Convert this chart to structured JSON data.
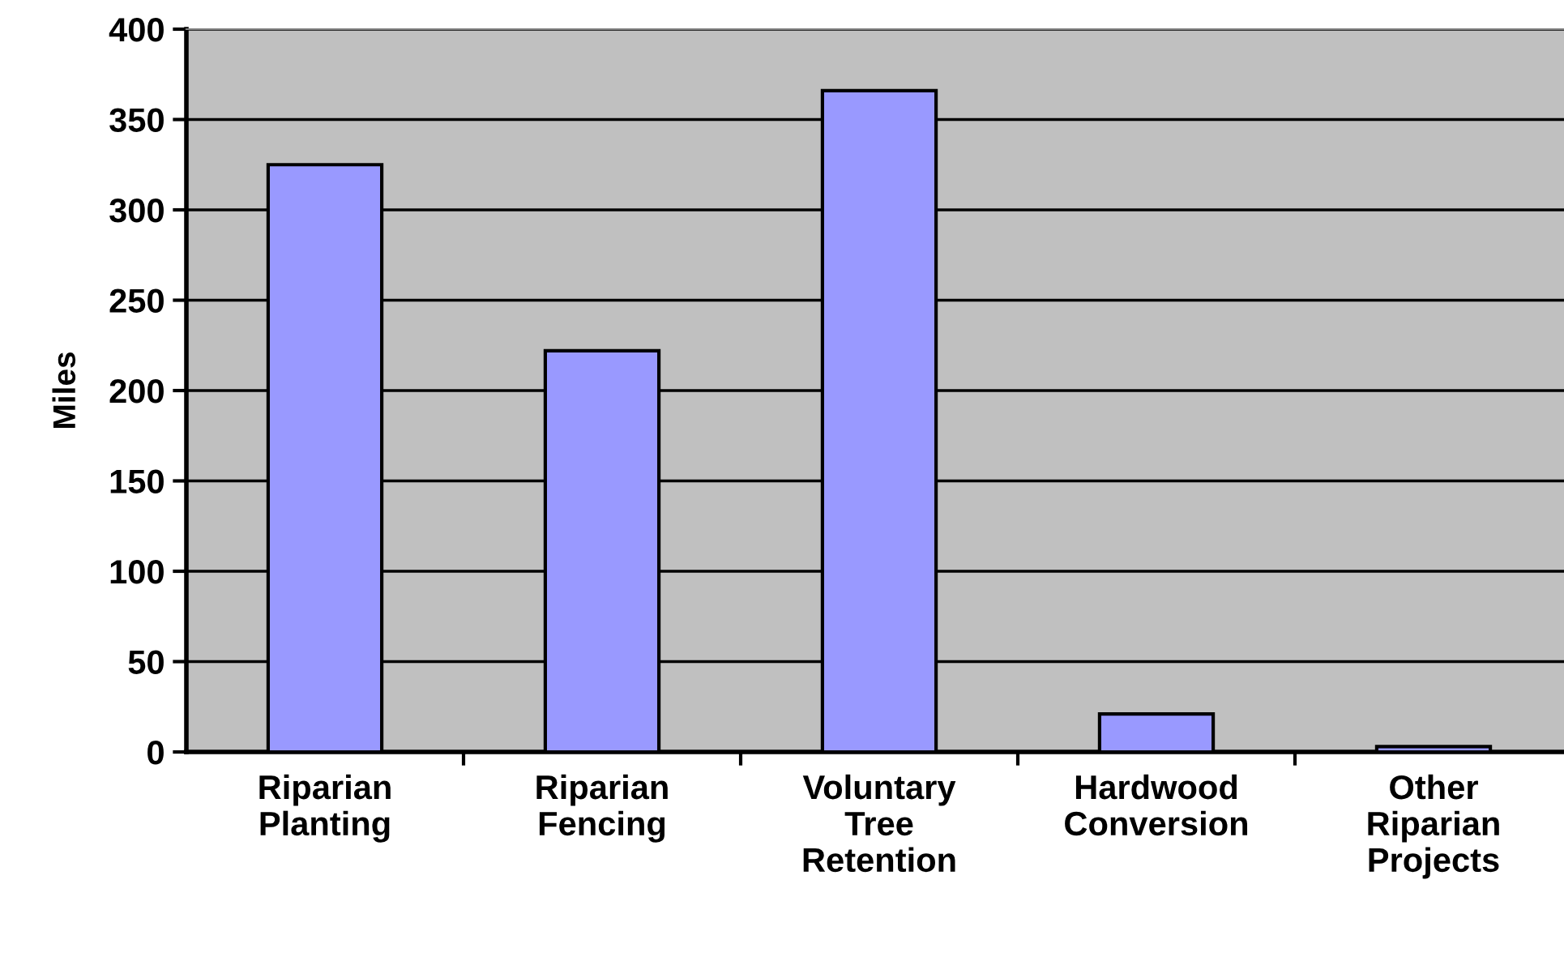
{
  "chart_data": {
    "type": "bar",
    "categories": [
      "Riparian\nPlanting",
      "Riparian\nFencing",
      "Voluntary\nTree\nRetention",
      "Hardwood\nConversion",
      "Other\nRiparian\nProjects"
    ],
    "values": [
      325,
      222,
      366,
      21,
      3
    ],
    "color": "#9999ff",
    "ylabel": "Miles",
    "ylim": [
      0,
      400
    ],
    "yticks": [
      0,
      50,
      100,
      150,
      200,
      250,
      300,
      350,
      400
    ],
    "grid": "y",
    "legend": false
  }
}
